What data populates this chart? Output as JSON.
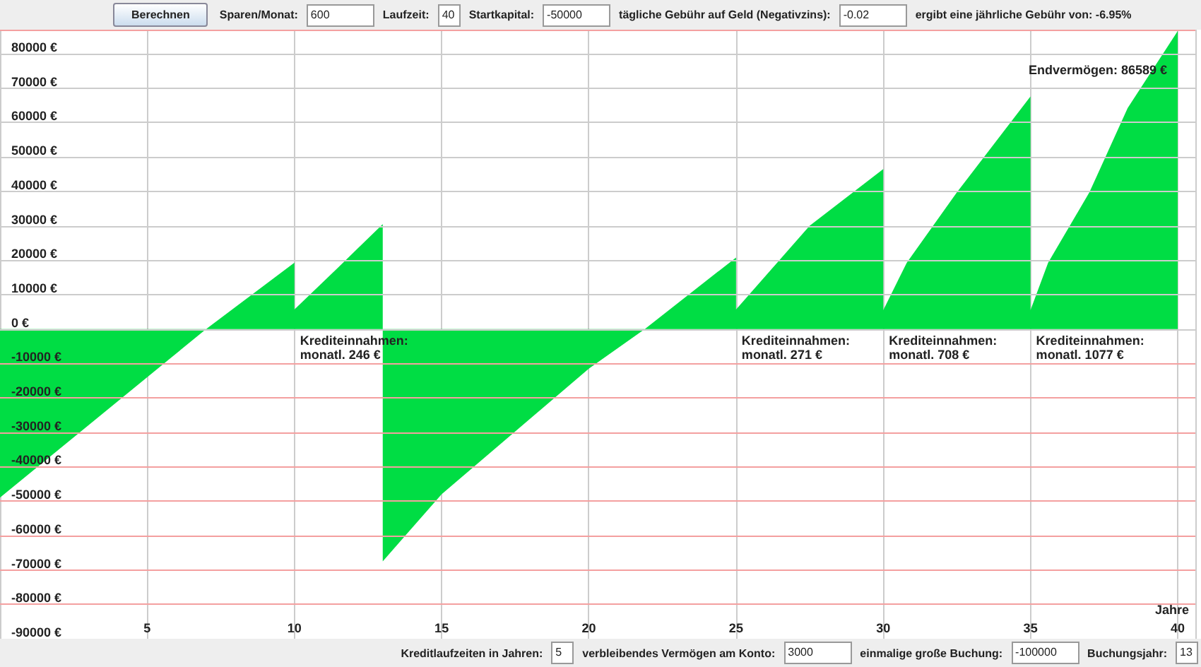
{
  "chart_data": {
    "type": "area",
    "xlabel": "Jahre",
    "series": [
      {
        "color": "#00dd44",
        "x": [
          0,
          7,
          10,
          10,
          11.5,
          13,
          13,
          15,
          20,
          21.9,
          25,
          25,
          27.5,
          30,
          30,
          30.8,
          32.5,
          35,
          35,
          35.6,
          37,
          38.3,
          40
        ],
        "values": [
          -49000,
          0,
          19300,
          5700,
          18000,
          30500,
          -67500,
          -48000,
          -11500,
          0,
          20800,
          5700,
          30000,
          46500,
          5500,
          19300,
          39700,
          67600,
          5500,
          19300,
          39700,
          64200,
          86589
        ]
      }
    ],
    "xlim": [
      0,
      40.6
    ],
    "xticks": [
      5,
      10,
      15,
      20,
      25,
      30,
      35,
      40
    ],
    "ylim": [
      -90000,
      87000
    ],
    "yticks": [
      {
        "value": -90000,
        "label": "-90000 €"
      },
      {
        "value": -80000,
        "label": "-80000 €"
      },
      {
        "value": -70000,
        "label": "-70000 €"
      },
      {
        "value": -60000,
        "label": "-60000 €"
      },
      {
        "value": -50000,
        "label": "-50000 €"
      },
      {
        "value": -40000,
        "label": "-40000 €"
      },
      {
        "value": -30000,
        "label": "-30000 €"
      },
      {
        "value": -20000,
        "label": "-20000 €"
      },
      {
        "value": -10000,
        "label": "-10000 €"
      },
      {
        "value": 0,
        "label": "0 €"
      },
      {
        "value": 10000,
        "label": "10000 €"
      },
      {
        "value": 20000,
        "label": "20000 €"
      },
      {
        "value": 30000,
        "label": "30000 €"
      },
      {
        "value": 40000,
        "label": "40000 €"
      },
      {
        "value": 50000,
        "label": "50000 €"
      },
      {
        "value": 60000,
        "label": "60000 €"
      },
      {
        "value": 70000,
        "label": "70000 €"
      },
      {
        "value": 80000,
        "label": "80000 €"
      }
    ],
    "grid": true,
    "marker": "none",
    "annotations": [
      {
        "text": "Krediteinnahmen:\nmonatl. 246 €",
        "x": 10,
        "y": 0
      },
      {
        "text": "Krediteinnahmen:\nmonatl. 271 €",
        "x": 25,
        "y": 0
      },
      {
        "text": "Krediteinnahmen:\nmonatl. 708 €",
        "x": 30,
        "y": 0
      },
      {
        "text": "Krediteinnahmen:\nmonatl. 1077 €",
        "x": 35,
        "y": 0
      },
      "Endvermögen: 86589 €",
      "Berechnen",
      "Sparen/Monat:",
      "600",
      "Laufzeit:",
      "40",
      "Startkapital:",
      "-50000",
      "tägliche Gebühr auf Geld (Negativzins):",
      "-0.02",
      "ergibt eine jährliche Gebühr von: -6.95%",
      "Kreditlaufzeiten in Jahren:",
      "5",
      "verbleibendes Vermögen am Konto:",
      "3000",
      "einmalige große Buchung:",
      "-100000",
      "Buchungsjahr:",
      "13"
    ]
  }
}
